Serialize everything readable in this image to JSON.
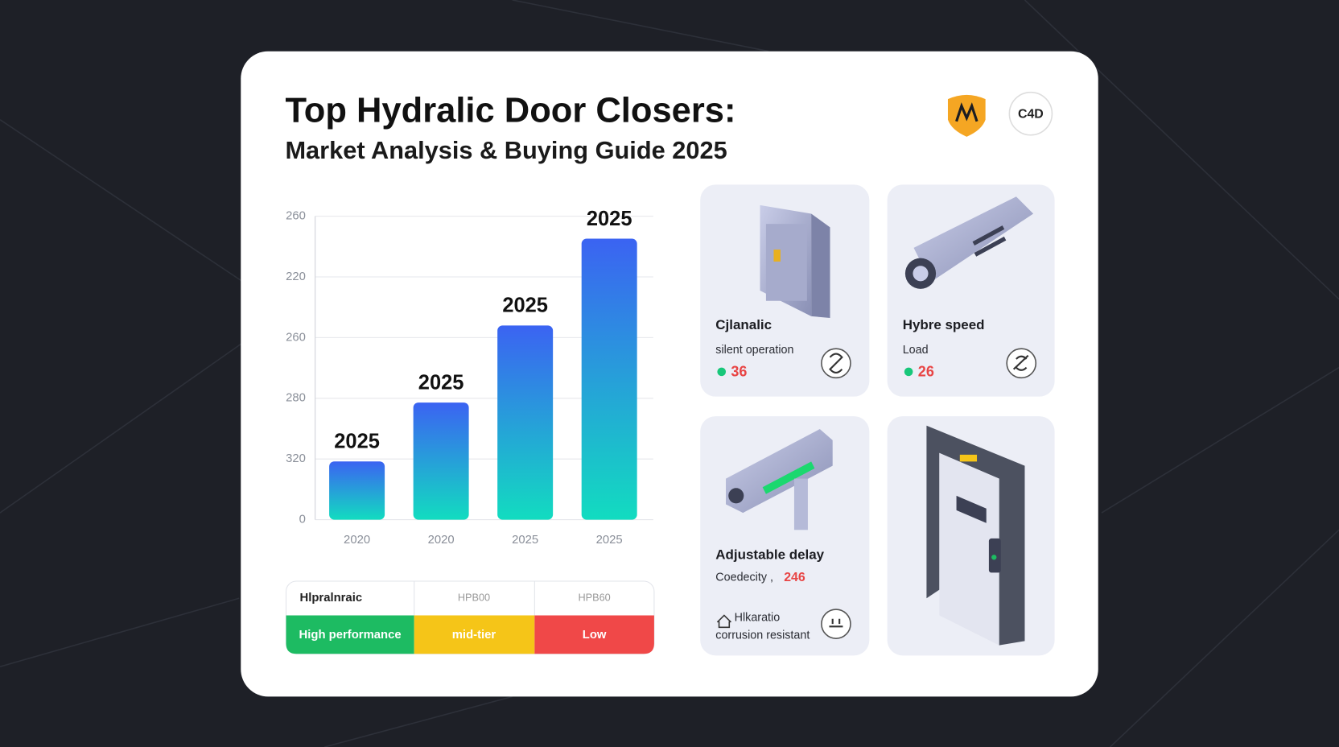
{
  "header": {
    "title": "Top Hydralic Door Closers:",
    "subtitle": "Market Analysis & Buying Guide 2025",
    "badge": "C4D"
  },
  "chart": {
    "type": "bar",
    "categories": [
      "2020",
      "2020",
      "2025",
      "2025"
    ],
    "values": [
      0.96,
      1.93,
      3.2,
      4.63
    ],
    "bar_labels": [
      "2025",
      "2025",
      "2025",
      "2025"
    ],
    "ylim": [
      0,
      5
    ],
    "yticks": [
      {
        "value": 0,
        "label": "0"
      },
      {
        "value": 1,
        "label": "320"
      },
      {
        "value": 2,
        "label": "280"
      },
      {
        "value": 3,
        "label": "260"
      },
      {
        "value": 4,
        "label": "220"
      },
      {
        "value": 5,
        "label": "260"
      }
    ],
    "grid": true
  },
  "table": {
    "header": [
      "Hlpralnraic",
      "HPB00",
      "HPB60"
    ],
    "rows": [
      [
        "High performance",
        "mid-tier",
        "Low"
      ]
    ]
  },
  "cards": [
    {
      "title": "Cjlanalic",
      "subtitle": "silent operation",
      "value": "36"
    },
    {
      "title": "Hybre speed",
      "subtitle": "Load",
      "value": "26"
    },
    {
      "title": "Adjustable delay",
      "subtitle": "Coedecity ,",
      "value": "246",
      "note_1": "Hlkaratio",
      "note_2": "corrusion resistant"
    }
  ]
}
